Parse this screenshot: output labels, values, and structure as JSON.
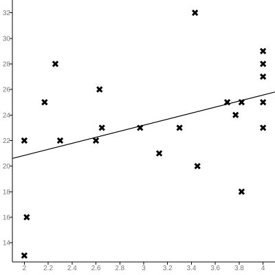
{
  "chart_data": {
    "type": "scatter",
    "title": "",
    "xlabel": "",
    "ylabel": "",
    "xlim": [
      1.9,
      4.1
    ],
    "ylim": [
      12.5,
      33.0
    ],
    "x_ticks": [
      2,
      2.2,
      2.4,
      2.6,
      2.8,
      3,
      3.2,
      3.4,
      3.6,
      3.8,
      4
    ],
    "x_tick_labels": [
      "2",
      "2.2",
      "2.4",
      "2.6",
      "2.8",
      "3",
      "3.2",
      "3.4",
      "3.6",
      "3.8",
      "4"
    ],
    "y_ticks": [
      14,
      16,
      18,
      20,
      22,
      24,
      26,
      28,
      30,
      32
    ],
    "y_tick_labels": [
      "14",
      "16",
      "18",
      "20",
      "22",
      "24",
      "26",
      "28",
      "30",
      "32"
    ],
    "grid": false,
    "legend": "none",
    "marker": "x",
    "marker_color": "#000000",
    "line_color": "#000000",
    "series": [
      {
        "points": [
          {
            "x": 2.0,
            "y": 22
          },
          {
            "x": 2.0,
            "y": 13
          },
          {
            "x": 2.02,
            "y": 16
          },
          {
            "x": 2.17,
            "y": 25
          },
          {
            "x": 2.26,
            "y": 28
          },
          {
            "x": 2.3,
            "y": 22
          },
          {
            "x": 2.6,
            "y": 22
          },
          {
            "x": 2.63,
            "y": 26
          },
          {
            "x": 2.65,
            "y": 23
          },
          {
            "x": 2.97,
            "y": 23
          },
          {
            "x": 3.13,
            "y": 21
          },
          {
            "x": 3.3,
            "y": 23
          },
          {
            "x": 3.43,
            "y": 32
          },
          {
            "x": 3.45,
            "y": 20
          },
          {
            "x": 3.7,
            "y": 25
          },
          {
            "x": 3.77,
            "y": 24
          },
          {
            "x": 3.82,
            "y": 25
          },
          {
            "x": 3.82,
            "y": 18
          },
          {
            "x": 4.0,
            "y": 29
          },
          {
            "x": 4.0,
            "y": 28
          },
          {
            "x": 4.0,
            "y": 27
          },
          {
            "x": 4.0,
            "y": 25
          },
          {
            "x": 4.0,
            "y": 23
          }
        ]
      }
    ],
    "trend_line": {
      "x": [
        1.9,
        4.1
      ],
      "y": [
        20.6,
        25.8
      ]
    }
  }
}
